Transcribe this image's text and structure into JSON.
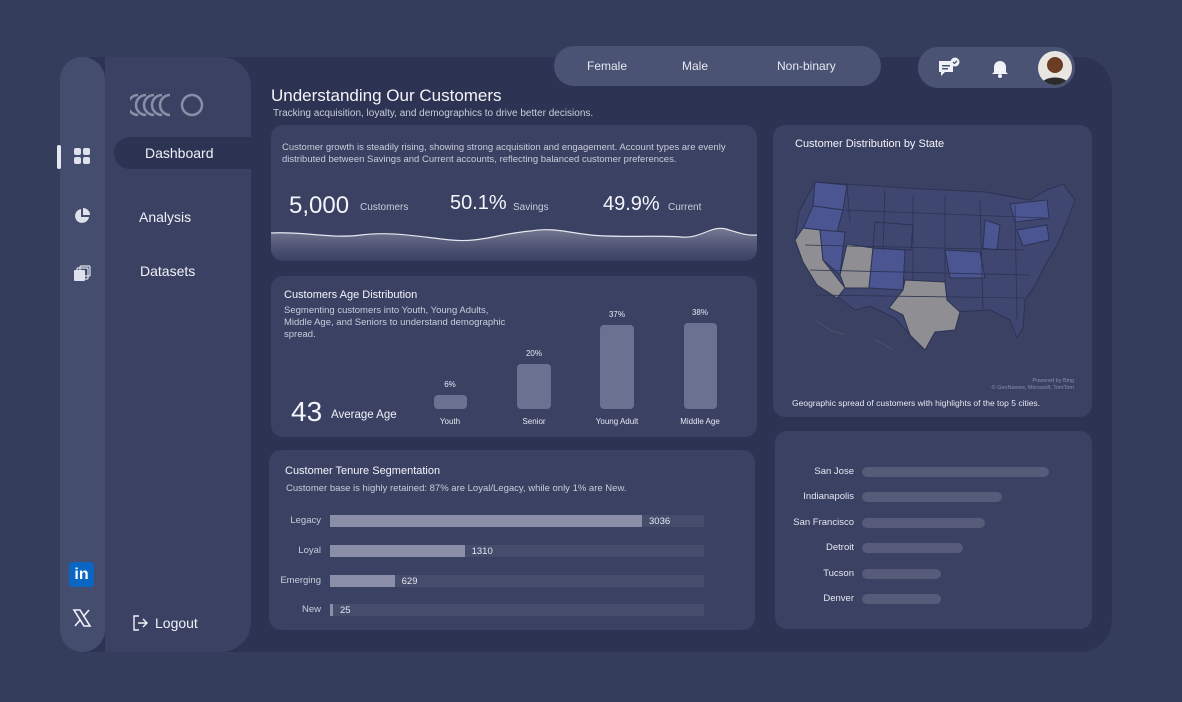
{
  "colors": {
    "background": "#353d5c",
    "panel": "#2d3352",
    "card": "#3a4163",
    "accent_bar": "#8a8fa7",
    "map_highlight": "#4a5591",
    "map_gray": "#8f8f93",
    "linkedin": "#0a66c2"
  },
  "sidebar": {
    "logo_icon": "ripple-logo-icon",
    "items": [
      {
        "label": "Dashboard",
        "active": true
      },
      {
        "label": "Analysis",
        "active": false
      },
      {
        "label": "Datasets",
        "active": false
      }
    ],
    "logout_label": "Logout"
  },
  "rail_icons": [
    "dashboard-grid-icon",
    "pie-chart-icon",
    "datasets-icon",
    "linkedin-icon",
    "x-twitter-icon"
  ],
  "gender_filter": {
    "options": [
      "Female",
      "Male",
      "Non-binary"
    ]
  },
  "header": {
    "title": "Understanding Our Customers",
    "subtitle": "Tracking acquisition, loyalty, and demographics to drive better decisions.",
    "icons": [
      "message-check-icon",
      "bell-icon",
      "avatar"
    ]
  },
  "overview": {
    "description": "Customer growth is steadily rising, showing strong acquisition and engagement. Account types are evenly distributed between Savings and Current accounts, reflecting balanced customer preferences.",
    "kpis": [
      {
        "value": "5,000",
        "label": "Customers"
      },
      {
        "value": "50.1%",
        "label": "Savings"
      },
      {
        "value": "49.9%",
        "label": "Current"
      }
    ]
  },
  "age": {
    "title": "Customers Age Distribution",
    "description": "Segmenting customers into Youth, Young Adults, Middle Age, and Seniors to understand demographic spread.",
    "avg_value": "43",
    "avg_label": "Average Age",
    "bars": [
      {
        "category": "Youth",
        "pct_label": "6%",
        "value": 6
      },
      {
        "category": "Senior",
        "pct_label": "20%",
        "value": 20
      },
      {
        "category": "Young Adult",
        "pct_label": "37%",
        "value": 37
      },
      {
        "category": "Middle Age",
        "pct_label": "38%",
        "value": 38
      }
    ]
  },
  "tenure": {
    "title": "Customer Tenure Segmentation",
    "description": "Customer base is highly retained: 87% are Loyal/Legacy, while only 1% are New.",
    "max": 3036,
    "rows": [
      {
        "label": "Legacy",
        "value": 3036,
        "value_label": "3036"
      },
      {
        "label": "Loyal",
        "value": 1310,
        "value_label": "1310"
      },
      {
        "label": "Emerging",
        "value": 629,
        "value_label": "629"
      },
      {
        "label": "New",
        "value": 25,
        "value_label": "25"
      }
    ]
  },
  "map": {
    "title": "Customer Distribution by State",
    "caption": "Geographic spread of customers with highlights of the top 5 cities.",
    "credit": "Powered by Bing\n© GeoNames, Microsoft, TomTom"
  },
  "cities": {
    "rows": [
      {
        "label": "San Jose",
        "value": 100
      },
      {
        "label": "Indianapolis",
        "value": 75
      },
      {
        "label": "San Francisco",
        "value": 66
      },
      {
        "label": "Detroit",
        "value": 54
      },
      {
        "label": "Tucson",
        "value": 42
      },
      {
        "label": "Denver",
        "value": 42
      }
    ]
  }
}
